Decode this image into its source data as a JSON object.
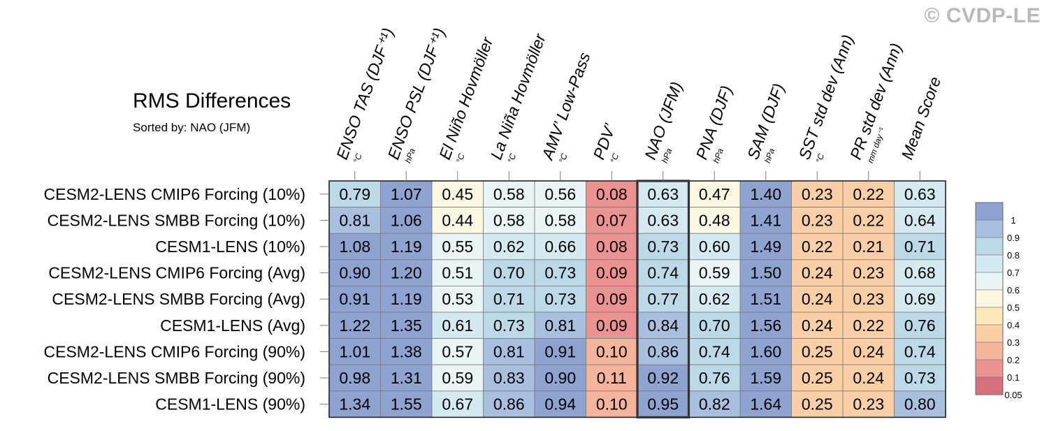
{
  "watermark": "© CVDP-LE",
  "header": {
    "title": "RMS Differences",
    "subtitle": "Sorted by: NAO (JFM)"
  },
  "colors": {
    "grid": "#7a7a7a",
    "highlight_border": "#333333",
    "bins": [
      "#d6707e",
      "#ea9390",
      "#f5b49c",
      "#fbcfa6",
      "#fde8bb",
      "#faf7e2",
      "#eaf4f5",
      "#d4e9f0",
      "#bcd9e8",
      "#a8c0de",
      "#8ea3cf"
    ]
  },
  "legend": {
    "labels": [
      "1",
      "0.9",
      "0.8",
      "0.7",
      "0.6",
      "0.5",
      "0.4",
      "0.3",
      "0.2",
      "0.1",
      "0.05"
    ]
  },
  "chart_data": {
    "type": "heatmap",
    "title": "RMS Differences",
    "subtitle": "Sorted by: NAO (JFM)",
    "highlight_column": "NAO (JFM)",
    "columns": [
      {
        "label": "ENSO TAS (DJF⁺¹)",
        "unit": "°C"
      },
      {
        "label": "ENSO PSL (DJF⁺¹)",
        "unit": "hPa"
      },
      {
        "label": "El Niño Hovmöller",
        "unit": "°C"
      },
      {
        "label": "La Niña Hovmöller",
        "unit": "°C"
      },
      {
        "label": "AMV’ Low-Pass",
        "unit": "°C"
      },
      {
        "label": "PDV’",
        "unit": "°C"
      },
      {
        "label": "NAO (JFM)",
        "unit": "hPa"
      },
      {
        "label": "PNA (DJF)",
        "unit": "hPa"
      },
      {
        "label": "SAM (DJF)",
        "unit": "hPa"
      },
      {
        "label": "SST std dev (Ann)",
        "unit": "°C"
      },
      {
        "label": "PR std dev (Ann)",
        "unit": "mm day⁻¹"
      },
      {
        "label": "Mean Score",
        "unit": ""
      }
    ],
    "rows": [
      "CESM2-LENS CMIP6 Forcing (10%)",
      "CESM2-LENS SMBB Forcing (10%)",
      "CESM1-LENS (10%)",
      "CESM2-LENS CMIP6 Forcing (Avg)",
      "CESM2-LENS SMBB Forcing (Avg)",
      "CESM1-LENS (Avg)",
      "CESM2-LENS CMIP6 Forcing (90%)",
      "CESM2-LENS SMBB Forcing (90%)",
      "CESM1-LENS (90%)"
    ],
    "values": [
      [
        "0.79",
        "1.07",
        "0.45",
        "0.58",
        "0.56",
        "0.08",
        "0.63",
        "0.47",
        "1.40",
        "0.23",
        "0.22",
        "0.63"
      ],
      [
        "0.81",
        "1.06",
        "0.44",
        "0.58",
        "0.58",
        "0.07",
        "0.63",
        "0.48",
        "1.41",
        "0.23",
        "0.22",
        "0.64"
      ],
      [
        "1.08",
        "1.19",
        "0.55",
        "0.62",
        "0.66",
        "0.08",
        "0.73",
        "0.60",
        "1.49",
        "0.22",
        "0.21",
        "0.71"
      ],
      [
        "0.90",
        "1.20",
        "0.51",
        "0.70",
        "0.73",
        "0.09",
        "0.74",
        "0.59",
        "1.50",
        "0.24",
        "0.23",
        "0.68"
      ],
      [
        "0.91",
        "1.19",
        "0.53",
        "0.71",
        "0.73",
        "0.09",
        "0.77",
        "0.62",
        "1.51",
        "0.24",
        "0.23",
        "0.69"
      ],
      [
        "1.22",
        "1.35",
        "0.61",
        "0.73",
        "0.81",
        "0.09",
        "0.84",
        "0.70",
        "1.56",
        "0.24",
        "0.22",
        "0.76"
      ],
      [
        "1.01",
        "1.38",
        "0.57",
        "0.81",
        "0.91",
        "0.10",
        "0.86",
        "0.74",
        "1.60",
        "0.25",
        "0.24",
        "0.74"
      ],
      [
        "0.98",
        "1.31",
        "0.59",
        "0.83",
        "0.90",
        "0.11",
        "0.92",
        "0.76",
        "1.59",
        "0.25",
        "0.24",
        "0.73"
      ],
      [
        "1.34",
        "1.55",
        "0.67",
        "0.86",
        "0.94",
        "0.10",
        "0.95",
        "0.82",
        "1.64",
        "0.25",
        "0.23",
        "0.80"
      ]
    ]
  }
}
